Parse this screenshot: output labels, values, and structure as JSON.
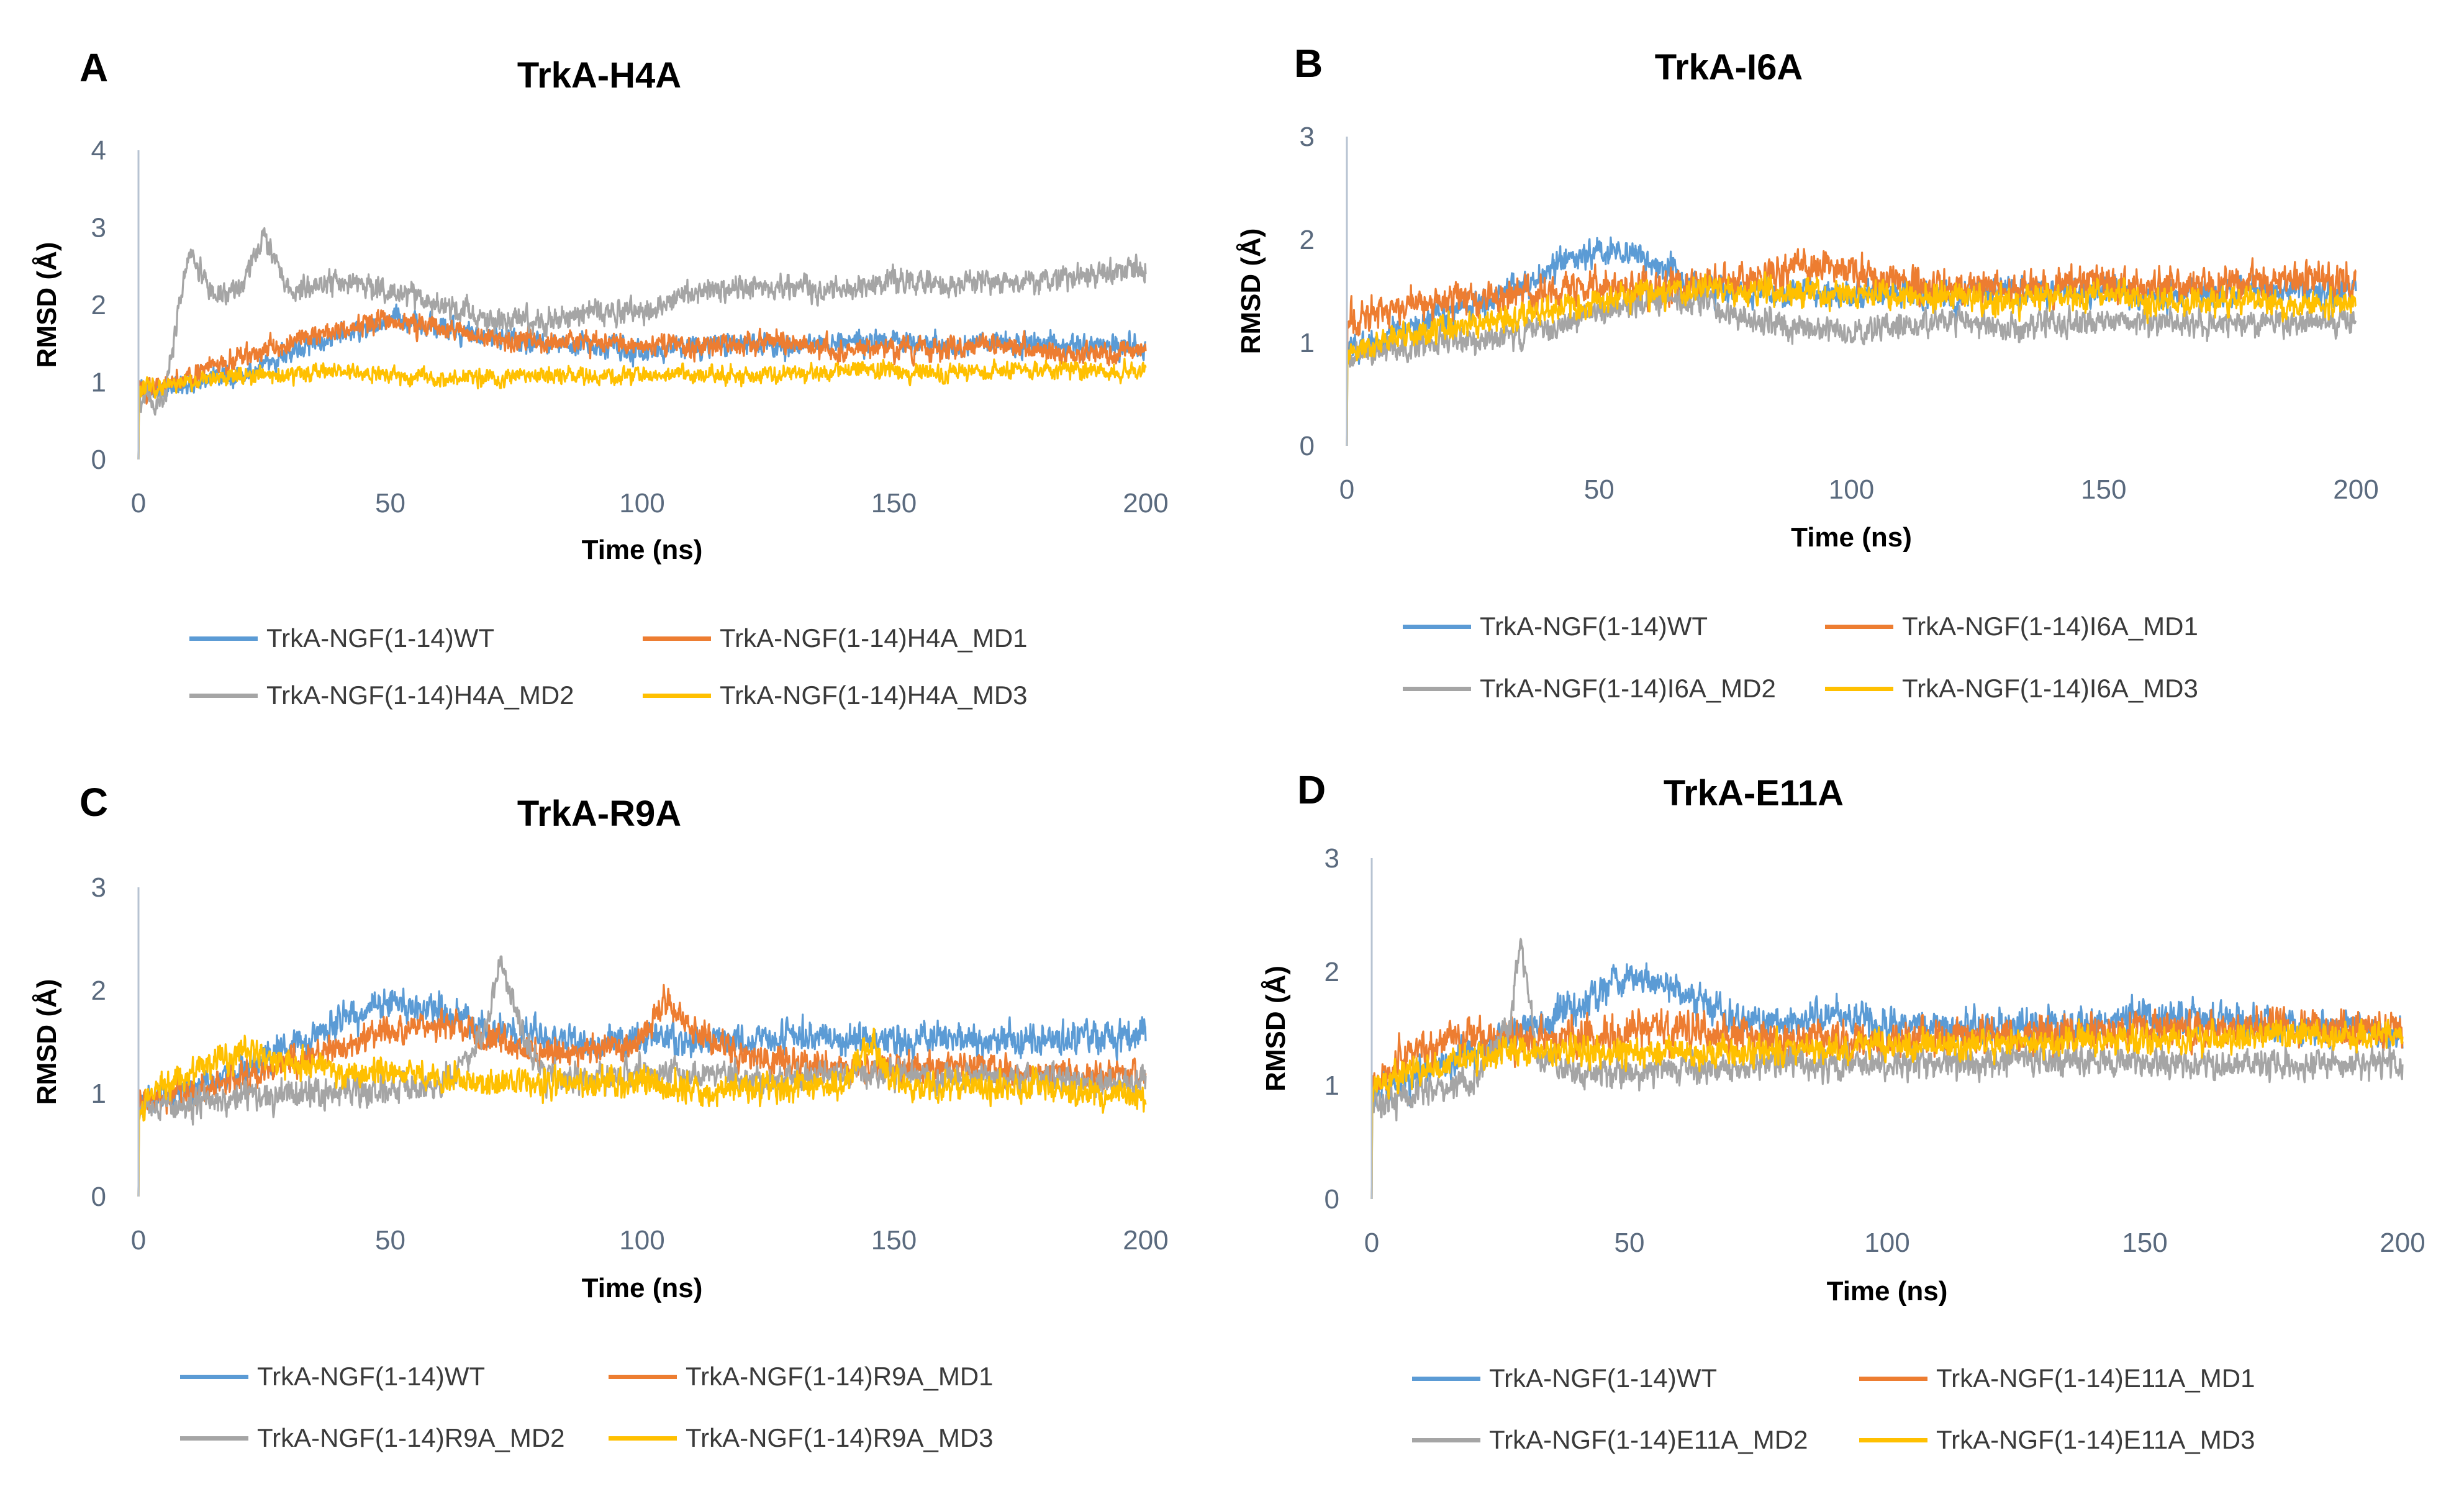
{
  "figure": {
    "background": "#ffffff"
  },
  "series_colors": [
    "#5b9bd5",
    "#ed7d31",
    "#a5a5a5",
    "#ffc000"
  ],
  "chart_data": [
    {
      "type": "line",
      "letter": "A",
      "title": "TrkA-H4A",
      "xlabel": "Time (ns)",
      "ylabel": "RMSD (Å)",
      "xlim": [
        0,
        200
      ],
      "ylim": [
        0,
        4
      ],
      "xticks": [
        0,
        50,
        100,
        150,
        200
      ],
      "yticks": [
        0,
        1,
        2,
        3,
        4
      ],
      "grid": false,
      "legend_position": "bottom",
      "series": [
        {
          "name": "TrkA-NGF(1-14)WT",
          "color": "#5b9bd5",
          "noise": 0.14,
          "x": [
            0,
            10,
            20,
            30,
            40,
            50,
            60,
            70,
            80,
            90,
            100,
            110,
            120,
            130,
            140,
            150,
            160,
            170,
            180,
            190,
            200
          ],
          "y": [
            0.85,
            1.0,
            1.1,
            1.4,
            1.6,
            1.8,
            1.7,
            1.6,
            1.5,
            1.5,
            1.4,
            1.45,
            1.5,
            1.45,
            1.5,
            1.55,
            1.45,
            1.5,
            1.5,
            1.45,
            1.5
          ]
        },
        {
          "name": "TrkA-NGF(1-14)H4A_MD1",
          "color": "#ed7d31",
          "noise": 0.14,
          "x": [
            0,
            10,
            20,
            30,
            40,
            50,
            60,
            70,
            80,
            90,
            100,
            110,
            120,
            130,
            140,
            150,
            160,
            170,
            180,
            190,
            200
          ],
          "y": [
            0.9,
            1.1,
            1.3,
            1.5,
            1.7,
            1.8,
            1.7,
            1.6,
            1.5,
            1.5,
            1.5,
            1.45,
            1.5,
            1.5,
            1.4,
            1.45,
            1.4,
            1.5,
            1.4,
            1.35,
            1.4
          ]
        },
        {
          "name": "TrkA-NGF(1-14)H4A_MD2",
          "color": "#a5a5a5",
          "noise": 0.16,
          "x": [
            0,
            5,
            10,
            15,
            20,
            25,
            30,
            40,
            50,
            60,
            70,
            80,
            90,
            100,
            110,
            120,
            130,
            140,
            150,
            160,
            170,
            180,
            190,
            200
          ],
          "y": [
            0.8,
            0.75,
            2.7,
            2.1,
            2.2,
            2.9,
            2.2,
            2.3,
            2.2,
            2.0,
            1.8,
            1.8,
            1.9,
            1.9,
            2.2,
            2.25,
            2.2,
            2.2,
            2.3,
            2.3,
            2.3,
            2.35,
            2.4,
            2.45
          ]
        },
        {
          "name": "TrkA-NGF(1-14)H4A_MD3",
          "color": "#ffc000",
          "noise": 0.11,
          "x": [
            0,
            10,
            20,
            30,
            40,
            50,
            60,
            70,
            80,
            90,
            100,
            110,
            120,
            130,
            140,
            150,
            160,
            170,
            180,
            190,
            200
          ],
          "y": [
            0.9,
            1.0,
            1.1,
            1.1,
            1.15,
            1.1,
            1.05,
            1.05,
            1.1,
            1.05,
            1.1,
            1.1,
            1.1,
            1.1,
            1.15,
            1.15,
            1.1,
            1.15,
            1.15,
            1.15,
            1.15
          ]
        }
      ]
    },
    {
      "type": "line",
      "letter": "B",
      "title": "TrkA-I6A",
      "xlabel": "Time (ns)",
      "ylabel": "RMSD (Å)",
      "xlim": [
        0,
        200
      ],
      "ylim": [
        0,
        3
      ],
      "xticks": [
        0,
        50,
        100,
        150,
        200
      ],
      "yticks": [
        0,
        1,
        2,
        3
      ],
      "grid": false,
      "legend_position": "bottom",
      "series": [
        {
          "name": "TrkA-NGF(1-14)WT",
          "color": "#5b9bd5",
          "noise": 0.14,
          "x": [
            0,
            10,
            20,
            30,
            40,
            50,
            60,
            70,
            80,
            90,
            100,
            110,
            120,
            130,
            140,
            150,
            160,
            170,
            180,
            190,
            200
          ],
          "y": [
            0.9,
            1.1,
            1.3,
            1.45,
            1.7,
            1.9,
            1.8,
            1.55,
            1.5,
            1.5,
            1.45,
            1.5,
            1.45,
            1.5,
            1.5,
            1.5,
            1.45,
            1.5,
            1.5,
            1.5,
            1.5
          ]
        },
        {
          "name": "TrkA-NGF(1-14)I6A_MD1",
          "color": "#ed7d31",
          "noise": 0.16,
          "x": [
            0,
            10,
            20,
            30,
            40,
            50,
            60,
            70,
            80,
            90,
            100,
            110,
            120,
            130,
            140,
            150,
            160,
            170,
            180,
            190,
            200
          ],
          "y": [
            1.2,
            1.35,
            1.4,
            1.45,
            1.5,
            1.55,
            1.55,
            1.55,
            1.6,
            1.75,
            1.7,
            1.6,
            1.55,
            1.55,
            1.55,
            1.6,
            1.55,
            1.55,
            1.55,
            1.6,
            1.6
          ]
        },
        {
          "name": "TrkA-NGF(1-14)I6A_MD2",
          "color": "#a5a5a5",
          "noise": 0.13,
          "x": [
            0,
            10,
            20,
            30,
            40,
            50,
            60,
            70,
            80,
            90,
            100,
            110,
            120,
            130,
            140,
            150,
            160,
            170,
            180,
            190,
            200
          ],
          "y": [
            0.85,
            0.95,
            1.0,
            1.05,
            1.15,
            1.3,
            1.4,
            1.4,
            1.2,
            1.15,
            1.1,
            1.15,
            1.2,
            1.15,
            1.2,
            1.2,
            1.2,
            1.15,
            1.2,
            1.2,
            1.2
          ]
        },
        {
          "name": "TrkA-NGF(1-14)I6A_MD3",
          "color": "#ffc000",
          "noise": 0.13,
          "x": [
            0,
            10,
            20,
            30,
            40,
            50,
            60,
            70,
            80,
            90,
            100,
            110,
            120,
            130,
            140,
            150,
            160,
            170,
            180,
            190,
            200
          ],
          "y": [
            0.9,
            1.05,
            1.15,
            1.2,
            1.3,
            1.4,
            1.5,
            1.5,
            1.5,
            1.5,
            1.45,
            1.45,
            1.45,
            1.4,
            1.45,
            1.45,
            1.4,
            1.4,
            1.4,
            1.35,
            1.4
          ]
        }
      ]
    },
    {
      "type": "line",
      "letter": "C",
      "title": "TrkA-R9A",
      "xlabel": "Time (ns)",
      "ylabel": "RMSD (Å)",
      "xlim": [
        0,
        200
      ],
      "ylim": [
        0,
        3
      ],
      "xticks": [
        0,
        50,
        100,
        150,
        200
      ],
      "yticks": [
        0,
        1,
        2,
        3
      ],
      "grid": false,
      "legend_position": "bottom",
      "series": [
        {
          "name": "TrkA-NGF(1-14)WT",
          "color": "#5b9bd5",
          "noise": 0.15,
          "x": [
            0,
            10,
            20,
            30,
            40,
            50,
            60,
            70,
            80,
            90,
            100,
            110,
            120,
            130,
            140,
            150,
            160,
            170,
            180,
            190,
            200
          ],
          "y": [
            0.9,
            1.05,
            1.2,
            1.45,
            1.7,
            1.9,
            1.8,
            1.6,
            1.55,
            1.5,
            1.55,
            1.5,
            1.5,
            1.55,
            1.55,
            1.5,
            1.55,
            1.55,
            1.5,
            1.55,
            1.55
          ]
        },
        {
          "name": "TrkA-NGF(1-14)R9A_MD1",
          "color": "#ed7d31",
          "noise": 0.14,
          "x": [
            0,
            10,
            20,
            30,
            40,
            50,
            60,
            70,
            80,
            90,
            100,
            105,
            110,
            120,
            130,
            140,
            150,
            160,
            170,
            180,
            190,
            200
          ],
          "y": [
            0.9,
            1.0,
            1.15,
            1.3,
            1.45,
            1.6,
            1.7,
            1.5,
            1.4,
            1.4,
            1.5,
            1.9,
            1.6,
            1.35,
            1.3,
            1.25,
            1.25,
            1.25,
            1.25,
            1.2,
            1.2,
            1.2
          ]
        },
        {
          "name": "TrkA-NGF(1-14)R9A_MD2",
          "color": "#a5a5a5",
          "noise": 0.14,
          "x": [
            0,
            10,
            20,
            30,
            40,
            50,
            60,
            68,
            72,
            76,
            80,
            90,
            100,
            110,
            120,
            130,
            140,
            150,
            160,
            170,
            180,
            190,
            200
          ],
          "y": [
            0.85,
            0.9,
            0.95,
            1.0,
            1.0,
            1.05,
            1.1,
            1.5,
            2.3,
            1.6,
            1.2,
            1.15,
            1.2,
            1.2,
            1.15,
            1.15,
            1.2,
            1.2,
            1.15,
            1.15,
            1.15,
            1.1,
            1.1
          ]
        },
        {
          "name": "TrkA-NGF(1-14)R9A_MD3",
          "color": "#ffc000",
          "noise": 0.14,
          "x": [
            0,
            10,
            20,
            30,
            40,
            50,
            60,
            70,
            80,
            90,
            100,
            110,
            120,
            130,
            140,
            146,
            150,
            160,
            170,
            180,
            190,
            200
          ],
          "y": [
            0.9,
            1.2,
            1.4,
            1.3,
            1.2,
            1.2,
            1.15,
            1.1,
            1.1,
            1.1,
            1.1,
            1.05,
            1.05,
            1.05,
            1.1,
            1.5,
            1.1,
            1.05,
            1.05,
            1.05,
            1.0,
            1.0
          ]
        }
      ]
    },
    {
      "type": "line",
      "letter": "D",
      "title": "TrkA-E11A",
      "xlabel": "Time (ns)",
      "ylabel": "RMSD (Å)",
      "xlim": [
        0,
        200
      ],
      "ylim": [
        0,
        3
      ],
      "xticks": [
        0,
        50,
        100,
        150,
        200
      ],
      "yticks": [
        0,
        1,
        2,
        3
      ],
      "grid": false,
      "legend_position": "bottom",
      "series": [
        {
          "name": "TrkA-NGF(1-14)WT",
          "color": "#5b9bd5",
          "noise": 0.15,
          "x": [
            0,
            10,
            20,
            30,
            40,
            50,
            60,
            70,
            80,
            90,
            100,
            110,
            120,
            130,
            140,
            150,
            160,
            170,
            180,
            190,
            200
          ],
          "y": [
            0.9,
            1.1,
            1.3,
            1.5,
            1.7,
            1.95,
            1.8,
            1.6,
            1.55,
            1.6,
            1.55,
            1.5,
            1.5,
            1.5,
            1.55,
            1.6,
            1.6,
            1.55,
            1.5,
            1.5,
            1.5
          ]
        },
        {
          "name": "TrkA-NGF(1-14)E11A_MD1",
          "color": "#ed7d31",
          "noise": 0.16,
          "x": [
            0,
            10,
            20,
            30,
            40,
            50,
            60,
            70,
            80,
            90,
            100,
            110,
            120,
            130,
            140,
            150,
            160,
            170,
            180,
            190,
            200
          ],
          "y": [
            1.0,
            1.35,
            1.45,
            1.4,
            1.4,
            1.45,
            1.5,
            1.45,
            1.4,
            1.4,
            1.4,
            1.4,
            1.45,
            1.45,
            1.45,
            1.5,
            1.5,
            1.5,
            1.5,
            1.5,
            1.5
          ]
        },
        {
          "name": "TrkA-NGF(1-14)E11A_MD2",
          "color": "#a5a5a5",
          "noise": 0.13,
          "x": [
            0,
            10,
            20,
            27,
            29,
            32,
            40,
            50,
            60,
            70,
            80,
            90,
            100,
            110,
            120,
            130,
            140,
            150,
            160,
            170,
            180,
            190,
            200
          ],
          "y": [
            0.85,
            0.95,
            1.05,
            1.6,
            2.3,
            1.3,
            1.1,
            1.1,
            1.15,
            1.15,
            1.2,
            1.2,
            1.2,
            1.2,
            1.2,
            1.25,
            1.2,
            1.2,
            1.2,
            1.2,
            1.2,
            1.2,
            1.2
          ]
        },
        {
          "name": "TrkA-NGF(1-14)E11A_MD3",
          "color": "#ffc000",
          "noise": 0.13,
          "x": [
            0,
            10,
            20,
            30,
            40,
            50,
            60,
            70,
            80,
            90,
            100,
            110,
            120,
            130,
            140,
            150,
            160,
            170,
            180,
            190,
            200
          ],
          "y": [
            0.95,
            1.15,
            1.25,
            1.3,
            1.3,
            1.3,
            1.3,
            1.3,
            1.3,
            1.35,
            1.35,
            1.35,
            1.35,
            1.4,
            1.4,
            1.4,
            1.4,
            1.45,
            1.45,
            1.45,
            1.45
          ]
        }
      ]
    }
  ]
}
